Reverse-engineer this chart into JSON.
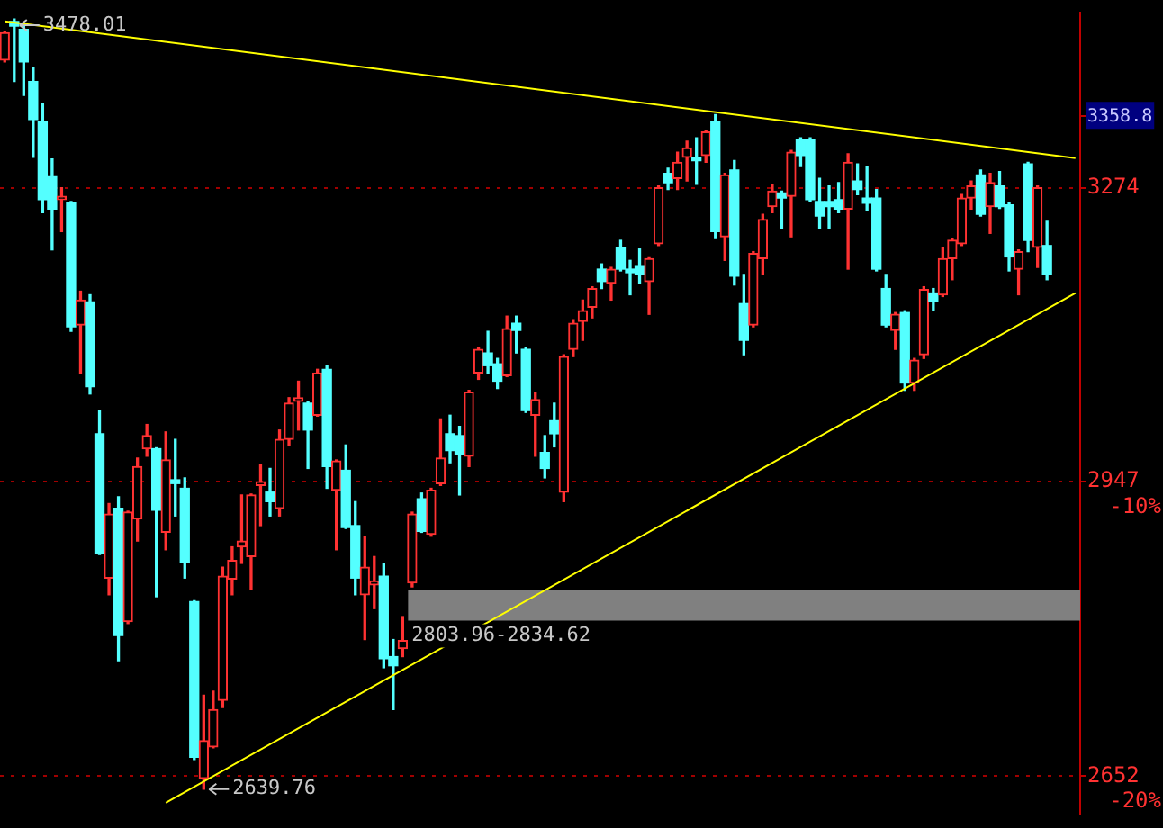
{
  "chart_data": {
    "type": "candlestick",
    "log": true,
    "grid": "y",
    "categories": [
      null,
      null,
      null,
      null,
      null,
      null,
      null,
      null,
      null,
      null,
      null,
      null,
      null,
      null,
      null,
      null,
      null,
      null,
      null,
      null,
      null,
      null,
      null,
      null,
      null,
      null,
      null,
      null,
      null,
      null,
      null,
      null,
      null,
      null,
      null,
      null,
      null,
      null,
      null,
      null,
      null,
      null,
      null,
      null,
      null,
      null,
      null,
      null,
      null,
      null,
      null,
      null,
      null,
      null,
      null,
      null,
      null,
      null,
      null,
      null,
      null,
      null,
      null,
      null,
      null,
      null,
      null,
      null,
      null,
      null,
      null,
      null,
      null,
      null,
      null,
      null,
      null,
      null,
      null,
      null,
      null,
      null,
      null,
      null,
      null,
      null,
      null,
      null,
      null,
      null,
      null,
      null,
      null,
      null,
      null,
      null,
      null,
      null,
      null,
      null,
      null,
      null,
      null,
      null,
      null,
      null,
      null,
      null,
      null,
      null,
      null,
      null,
      null,
      null
    ],
    "ohlc": [
      [
        3427,
        3463,
        3425,
        3461
      ],
      [
        3475,
        3478,
        3401,
        3469
      ],
      [
        3465,
        3473,
        3384,
        3425
      ],
      [
        3401,
        3418,
        3310,
        3355
      ],
      [
        3352,
        3374,
        3245,
        3260
      ],
      [
        3287,
        3308,
        3202,
        3249
      ],
      [
        3260,
        3274,
        3223,
        3264
      ],
      [
        3256,
        3258,
        3110,
        3115
      ],
      [
        3117,
        3155,
        3064,
        3145
      ],
      [
        3143,
        3151,
        3041,
        3049
      ],
      [
        2998,
        3023,
        2871,
        2872
      ],
      [
        2847,
        2924,
        2830,
        2913
      ],
      [
        2919,
        2931,
        2764,
        2789
      ],
      [
        2803,
        2916,
        2801,
        2915
      ],
      [
        2908,
        2972,
        2885,
        2963
      ],
      [
        2982,
        3008,
        2974,
        2996
      ],
      [
        2982,
        2983,
        2828,
        2917
      ],
      [
        2894,
        3000,
        2876,
        2970
      ],
      [
        2949,
        2992,
        2911,
        2945
      ],
      [
        2940,
        2951,
        2847,
        2863
      ],
      [
        2823,
        2824,
        2668,
        2670
      ],
      [
        2650,
        2730,
        2639.76,
        2686
      ],
      [
        2680,
        2734,
        2679,
        2716
      ],
      [
        2725,
        2858,
        2718,
        2849
      ],
      [
        2846,
        2879,
        2830,
        2865
      ],
      [
        2879,
        2933,
        2862,
        2885
      ],
      [
        2869,
        2934,
        2835,
        2933
      ],
      [
        2943,
        2965,
        2901,
        2947
      ],
      [
        2936,
        2961,
        2911,
        2926
      ],
      [
        2919,
        3002,
        2911,
        2992
      ],
      [
        2992,
        3037,
        2986,
        3031
      ],
      [
        3033,
        3055,
        3002,
        3037
      ],
      [
        3031,
        3033,
        2961,
        3002
      ],
      [
        3018,
        3068,
        3017,
        3064
      ],
      [
        3068,
        3072,
        2940,
        2963
      ],
      [
        2938,
        2970,
        2876,
        2969
      ],
      [
        2959,
        2986,
        2898,
        2899
      ],
      [
        2901,
        2926,
        2830,
        2847
      ],
      [
        2830,
        2890,
        2785,
        2858
      ],
      [
        2840,
        2869,
        2816,
        2844
      ],
      [
        2849,
        2862,
        2757,
        2766
      ],
      [
        2768,
        2785,
        2716,
        2759
      ],
      [
        2776,
        2808,
        2768,
        2784
      ],
      [
        2842,
        2915,
        2838,
        2913
      ],
      [
        2929,
        2935,
        2894,
        2895
      ],
      [
        2892,
        2940,
        2890,
        2938
      ],
      [
        2945,
        3014,
        2943,
        2972
      ],
      [
        2998,
        3018,
        2967,
        2980
      ],
      [
        2996,
        3006,
        2933,
        2976
      ],
      [
        2974,
        3045,
        2963,
        3043
      ],
      [
        3064,
        3092,
        3057,
        3090
      ],
      [
        3086,
        3110,
        3064,
        3072
      ],
      [
        3074,
        3080,
        3047,
        3055
      ],
      [
        3061,
        3127,
        3060,
        3113
      ],
      [
        3119,
        3127,
        3086,
        3111
      ],
      [
        3090,
        3092,
        3021,
        3023
      ],
      [
        3018,
        3043,
        2974,
        3035
      ],
      [
        2978,
        2996,
        2951,
        2961
      ],
      [
        3012,
        3031,
        2984,
        2998
      ],
      [
        2936,
        3084,
        2926,
        3082
      ],
      [
        3090,
        3123,
        3082,
        3119
      ],
      [
        3121,
        3145,
        3100,
        3133
      ],
      [
        3137,
        3160,
        3125,
        3158
      ],
      [
        3180,
        3186,
        3158,
        3166
      ],
      [
        3164,
        3182,
        3145,
        3180
      ],
      [
        3205,
        3213,
        3178,
        3180
      ],
      [
        3180,
        3190,
        3151,
        3176
      ],
      [
        3184,
        3203,
        3164,
        3174
      ],
      [
        3166,
        3194,
        3129,
        3192
      ],
      [
        3209,
        3276,
        3207,
        3274
      ],
      [
        3291,
        3297,
        3272,
        3280
      ],
      [
        3285,
        3316,
        3272,
        3304
      ],
      [
        3310,
        3329,
        3282,
        3321
      ],
      [
        3310,
        3333,
        3278,
        3306
      ],
      [
        3312,
        3342,
        3304,
        3340
      ],
      [
        3352,
        3361,
        3215,
        3223
      ],
      [
        3217,
        3291,
        3190,
        3289
      ],
      [
        3295,
        3306,
        3162,
        3172
      ],
      [
        3141,
        3174,
        3084,
        3100
      ],
      [
        3117,
        3200,
        3115,
        3198
      ],
      [
        3192,
        3243,
        3174,
        3237
      ],
      [
        3252,
        3278,
        3245,
        3270
      ],
      [
        3268,
        3270,
        3227,
        3262
      ],
      [
        3264,
        3318,
        3217,
        3316
      ],
      [
        3331,
        3333,
        3299,
        3312
      ],
      [
        3331,
        3333,
        3258,
        3260
      ],
      [
        3258,
        3285,
        3227,
        3241
      ],
      [
        3258,
        3276,
        3227,
        3252
      ],
      [
        3260,
        3280,
        3245,
        3249
      ],
      [
        3249,
        3314,
        3180,
        3304
      ],
      [
        3282,
        3302,
        3266,
        3272
      ],
      [
        3262,
        3299,
        3247,
        3256
      ],
      [
        3262,
        3272,
        3178,
        3180
      ],
      [
        3158,
        3174,
        3115,
        3117
      ],
      [
        3111,
        3131,
        3090,
        3129
      ],
      [
        3131,
        3133,
        3045,
        3053
      ],
      [
        3053,
        3080,
        3045,
        3078
      ],
      [
        3084,
        3160,
        3080,
        3157
      ],
      [
        3153,
        3158,
        3133,
        3143
      ],
      [
        3151,
        3205,
        3149,
        3192
      ],
      [
        3192,
        3215,
        3168,
        3213
      ],
      [
        3209,
        3266,
        3207,
        3262
      ],
      [
        3262,
        3282,
        3249,
        3276
      ],
      [
        3289,
        3295,
        3241,
        3243
      ],
      [
        3252,
        3291,
        3221,
        3280
      ],
      [
        3276,
        3293,
        3250,
        3252
      ],
      [
        3254,
        3256,
        3178,
        3194
      ],
      [
        3180,
        3202,
        3151,
        3200
      ],
      [
        3302,
        3304,
        3200,
        3213
      ],
      [
        3205,
        3276,
        3182,
        3274
      ],
      [
        3207,
        3235,
        3168,
        3174
      ],
      null,
      null,
      null
    ],
    "colors": [
      "#ff3232",
      "#54ffff",
      "#54ffff",
      "#54ffff",
      "#54ffff",
      "#54ffff",
      "#ff3232",
      "#54ffff",
      "#ff3232",
      "#54ffff",
      "#54ffff",
      "#ff3232",
      "#54ffff",
      "#ff3232",
      "#ff3232",
      "#ff3232",
      "#54ffff",
      "#ff3232",
      "#54ffff",
      "#54ffff",
      "#54ffff",
      "#ff3232",
      "#ff3232",
      "#ff3232",
      "#ff3232",
      "#ff3232",
      "#ff3232",
      "#ff3232",
      "#54ffff",
      "#ff3232",
      "#ff3232",
      "#ff3232",
      "#54ffff",
      "#ff3232",
      "#54ffff",
      "#ff3232",
      "#54ffff",
      "#54ffff",
      "#ff3232",
      "#ff3232",
      "#54ffff",
      "#54ffff",
      "#ff3232",
      "#ff3232",
      "#54ffff",
      "#ff3232",
      "#ff3232",
      "#54ffff",
      "#54ffff",
      "#ff3232",
      "#ff3232",
      "#54ffff",
      "#54ffff",
      "#ff3232",
      "#54ffff",
      "#54ffff",
      "#ff3232",
      "#54ffff",
      "#54ffff",
      "#ff3232",
      "#ff3232",
      "#ff3232",
      "#ff3232",
      "#54ffff",
      "#ff3232",
      "#54ffff",
      "#54ffff",
      "#54ffff",
      "#ff3232",
      "#ff3232",
      "#54ffff",
      "#ff3232",
      "#ff3232",
      "#54ffff",
      "#ff3232",
      "#54ffff",
      "#ff3232",
      "#54ffff",
      "#54ffff",
      "#ff3232",
      "#ff3232",
      "#ff3232",
      "#54ffff",
      "#ff3232",
      "#54ffff",
      "#54ffff",
      "#54ffff",
      "#54ffff",
      "#54ffff",
      "#ff3232",
      "#54ffff",
      "#54ffff",
      "#54ffff",
      "#54ffff",
      "#ff3232",
      "#54ffff",
      "#ff3232",
      "#ff3232",
      "#54ffff",
      "#ff3232",
      "#ff3232",
      "#ff3232",
      "#ff3232",
      "#54ffff",
      "#ff3232",
      "#54ffff",
      "#54ffff",
      "#ff3232",
      "#54ffff",
      "#ff3232",
      "#54ffff",
      null,
      null,
      null
    ],
    "series": [
      {
        "type": "line",
        "color": "#ffff00",
        "values": [
          3475,
          null,
          null,
          null,
          null,
          null,
          null,
          null,
          null,
          null,
          null,
          null,
          null,
          null,
          null,
          null,
          null,
          null,
          null,
          null,
          null,
          null,
          null,
          null,
          null,
          null,
          null,
          null,
          null,
          null,
          null,
          null,
          null,
          null,
          null,
          null,
          null,
          null,
          null,
          null,
          null,
          null,
          null,
          null,
          null,
          null,
          null,
          null,
          null,
          null,
          null,
          null,
          null,
          null,
          null,
          null,
          null,
          null,
          null,
          null,
          null,
          null,
          null,
          null,
          null,
          null,
          null,
          null,
          null,
          null,
          null,
          null,
          null,
          null,
          null,
          null,
          null,
          null,
          null,
          null,
          null,
          null,
          null,
          null,
          null,
          null,
          null,
          null,
          null,
          null,
          null,
          null,
          null,
          null,
          null,
          null,
          null,
          null,
          null,
          null,
          null,
          null,
          null,
          null,
          null,
          null,
          null,
          null,
          null,
          null,
          null,
          null,
          null,
          3309
        ]
      },
      {
        "type": "line",
        "color": "#ffff00",
        "values": [
          null,
          null,
          null,
          null,
          null,
          null,
          null,
          null,
          null,
          null,
          null,
          null,
          null,
          null,
          null,
          null,
          null,
          2627,
          null,
          null,
          null,
          null,
          null,
          null,
          null,
          null,
          null,
          null,
          null,
          null,
          null,
          null,
          null,
          null,
          null,
          null,
          null,
          null,
          null,
          null,
          null,
          null,
          null,
          null,
          null,
          null,
          null,
          null,
          null,
          null,
          null,
          null,
          null,
          null,
          null,
          null,
          null,
          null,
          null,
          null,
          null,
          null,
          null,
          null,
          null,
          null,
          null,
          null,
          null,
          null,
          null,
          null,
          null,
          null,
          null,
          null,
          null,
          null,
          null,
          null,
          null,
          null,
          null,
          null,
          null,
          null,
          null,
          null,
          null,
          null,
          null,
          null,
          null,
          null,
          null,
          null,
          null,
          null,
          null,
          null,
          null,
          null,
          null,
          null,
          null,
          null,
          null,
          null,
          null,
          null,
          null,
          null,
          null,
          3153
        ]
      }
    ],
    "ylim": [
      2617,
      3486
    ],
    "yticks": [
      2652,
      2947,
      3274,
      {
        "value": 3358.8,
        "label": "3358.8"
      }
    ],
    "y2lim": [
      -21.26,
      5.96
    ],
    "y2ticks": [
      {
        "value": -20,
        "label": "-20%"
      },
      {
        "value": -10,
        "label": "-10%"
      }
    ],
    "bands": [
      {
        "axis": "y",
        "from": 2803.96,
        "to": 2834.62,
        "label": "2803.96-2834.62",
        "color": "#808080"
      }
    ],
    "annotations": [
      "3478.01",
      "2639.76"
    ]
  }
}
